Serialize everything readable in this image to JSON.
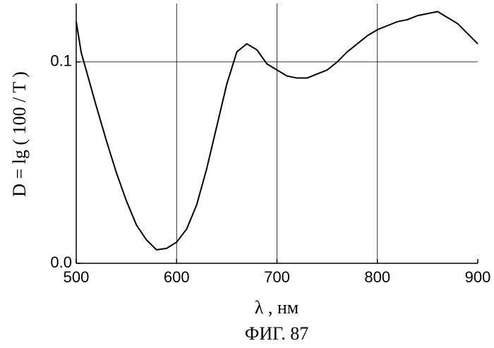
{
  "chart_data": {
    "type": "line",
    "xlabel": "λ , нм",
    "ylabel": "D = lg ( 100 / T )",
    "caption": "ФИГ. 87",
    "x": [
      500,
      505,
      510,
      520,
      530,
      540,
      550,
      560,
      570,
      580,
      590,
      600,
      610,
      620,
      630,
      640,
      650,
      660,
      670,
      680,
      690,
      700,
      710,
      720,
      730,
      740,
      750,
      760,
      770,
      780,
      790,
      800,
      810,
      820,
      830,
      840,
      850,
      860,
      870,
      880,
      890,
      900
    ],
    "values": [
      0.12,
      0.1046,
      0.0958,
      0.078,
      0.061,
      0.045,
      0.031,
      0.019,
      0.0116,
      0.0067,
      0.0074,
      0.0105,
      0.017,
      0.029,
      0.047,
      0.068,
      0.089,
      0.105,
      0.109,
      0.106,
      0.099,
      0.096,
      0.093,
      0.092,
      0.092,
      0.094,
      0.096,
      0.1,
      0.105,
      0.109,
      0.113,
      0.116,
      0.118,
      0.12,
      0.121,
      0.123,
      0.124,
      0.125,
      0.122,
      0.119,
      0.114,
      0.109
    ],
    "color": "#000000",
    "xlim": [
      500,
      900
    ],
    "xticks": [
      500,
      600,
      700,
      800,
      900
    ],
    "ylim": [
      0,
      0.129
    ],
    "yticks": [
      {
        "value": 0,
        "label": "0.0"
      },
      0.1
    ],
    "grid": true
  }
}
